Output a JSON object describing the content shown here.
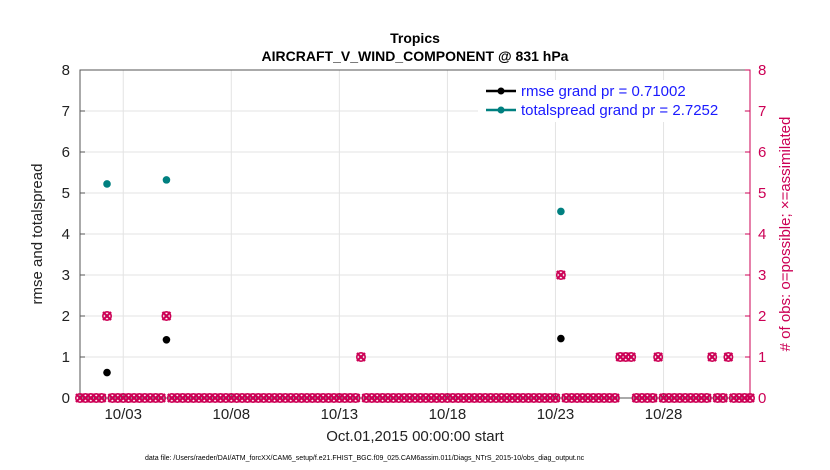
{
  "chart_data": {
    "type": "scatter",
    "title": "Tropics",
    "subtitle": "AIRCRAFT_V_WIND_COMPONENT @ 831 hPa",
    "xlabel": "Oct.01,2015 00:00:00 start",
    "ylabel_left": "rmse and totalspread",
    "ylabel_right": "# of obs: o=possible; ×=assimilated",
    "xlim": [
      1.0,
      32.0
    ],
    "ylim_left": [
      0,
      8
    ],
    "ylim_right": [
      0,
      8
    ],
    "grid": true,
    "x_ticks": [
      {
        "value": 3,
        "label": "10/03"
      },
      {
        "value": 8,
        "label": "10/08"
      },
      {
        "value": 13,
        "label": "10/13"
      },
      {
        "value": 18,
        "label": "10/18"
      },
      {
        "value": 23,
        "label": "10/23"
      },
      {
        "value": 28,
        "label": "10/28"
      }
    ],
    "y_ticks_left": [
      "0",
      "1",
      "2",
      "3",
      "4",
      "5",
      "6",
      "7",
      "8"
    ],
    "y_ticks_right": [
      "0",
      "1",
      "2",
      "3",
      "4",
      "5",
      "6",
      "7",
      "8"
    ],
    "legend_position": "top-right",
    "series": [
      {
        "name": "rmse grand pr = 0.71002",
        "color": "#000000",
        "axis": "left",
        "x": [
          2.25,
          5.0,
          23.25
        ],
        "values": [
          0.62,
          1.42,
          1.45
        ]
      },
      {
        "name": "totalspread grand pr = 2.7252",
        "color": "#008080",
        "axis": "left",
        "x": [
          2.25,
          5.0,
          23.25
        ],
        "values": [
          5.22,
          5.32,
          4.55
        ]
      },
      {
        "name": "obs possible",
        "color": "#cc0055",
        "axis": "right",
        "x": [
          1.0,
          1.25,
          1.5,
          1.75,
          2.0,
          2.25,
          2.5,
          2.75,
          3.0,
          3.25,
          3.5,
          3.75,
          4.0,
          4.25,
          4.5,
          4.75,
          5.0,
          5.25,
          5.5,
          5.75,
          6.0,
          6.25,
          6.5,
          6.75,
          7.0,
          7.25,
          7.5,
          7.75,
          8.0,
          8.25,
          8.5,
          8.75,
          9.0,
          9.25,
          9.5,
          9.75,
          10.0,
          10.25,
          10.5,
          10.75,
          11.0,
          11.25,
          11.5,
          11.75,
          12.0,
          12.25,
          12.5,
          12.75,
          13.0,
          13.25,
          13.5,
          13.75,
          14.0,
          14.25,
          14.5,
          14.75,
          15.0,
          15.25,
          15.5,
          15.75,
          16.0,
          16.25,
          16.5,
          16.75,
          17.0,
          17.25,
          17.5,
          17.75,
          18.0,
          18.25,
          18.5,
          18.75,
          19.0,
          19.25,
          19.5,
          19.75,
          20.0,
          20.25,
          20.5,
          20.75,
          21.0,
          21.25,
          21.5,
          21.75,
          22.0,
          22.25,
          22.5,
          22.75,
          23.0,
          23.25,
          23.5,
          23.75,
          24.0,
          24.25,
          24.5,
          24.75,
          25.0,
          25.25,
          25.5,
          25.75,
          26.0,
          26.25,
          26.5,
          26.75,
          27.0,
          27.25,
          27.5,
          27.75,
          28.0,
          28.25,
          28.5,
          28.75,
          29.0,
          29.25,
          29.5,
          29.75,
          30.0,
          30.25,
          30.5,
          30.75,
          31.0,
          31.25,
          31.5,
          31.75,
          32.0
        ],
        "values": [
          0,
          0,
          0,
          0,
          0,
          2,
          0,
          0,
          0,
          0,
          0,
          0,
          0,
          0,
          0,
          0,
          2,
          0,
          0,
          0,
          0,
          0,
          0,
          0,
          0,
          0,
          0,
          0,
          0,
          0,
          0,
          0,
          0,
          0,
          0,
          0,
          0,
          0,
          0,
          0,
          0,
          0,
          0,
          0,
          0,
          0,
          0,
          0,
          0,
          0,
          0,
          0,
          1,
          0,
          0,
          0,
          0,
          0,
          0,
          0,
          0,
          0,
          0,
          0,
          0,
          0,
          0,
          0,
          0,
          0,
          0,
          0,
          0,
          0,
          0,
          0,
          0,
          0,
          0,
          0,
          0,
          0,
          0,
          0,
          0,
          0,
          0,
          0,
          0,
          3,
          0,
          0,
          0,
          0,
          0,
          0,
          0,
          0,
          0,
          0,
          1,
          1,
          1,
          0,
          0,
          0,
          0,
          1,
          0,
          0,
          0,
          0,
          0,
          0,
          0,
          0,
          0,
          1,
          0,
          0,
          1,
          0,
          0,
          0,
          0
        ]
      },
      {
        "name": "obs assimilated",
        "color": "#cc0055",
        "axis": "right",
        "x": [
          1.0,
          1.25,
          1.5,
          1.75,
          2.0,
          2.25,
          2.5,
          2.75,
          3.0,
          3.25,
          3.5,
          3.75,
          4.0,
          4.25,
          4.5,
          4.75,
          5.0,
          5.25,
          5.5,
          5.75,
          6.0,
          6.25,
          6.5,
          6.75,
          7.0,
          7.25,
          7.5,
          7.75,
          8.0,
          8.25,
          8.5,
          8.75,
          9.0,
          9.25,
          9.5,
          9.75,
          10.0,
          10.25,
          10.5,
          10.75,
          11.0,
          11.25,
          11.5,
          11.75,
          12.0,
          12.25,
          12.5,
          12.75,
          13.0,
          13.25,
          13.5,
          13.75,
          14.0,
          14.25,
          14.5,
          14.75,
          15.0,
          15.25,
          15.5,
          15.75,
          16.0,
          16.25,
          16.5,
          16.75,
          17.0,
          17.25,
          17.5,
          17.75,
          18.0,
          18.25,
          18.5,
          18.75,
          19.0,
          19.25,
          19.5,
          19.75,
          20.0,
          20.25,
          20.5,
          20.75,
          21.0,
          21.25,
          21.5,
          21.75,
          22.0,
          22.25,
          22.5,
          22.75,
          23.0,
          23.25,
          23.5,
          23.75,
          24.0,
          24.25,
          24.5,
          24.75,
          25.0,
          25.25,
          25.5,
          25.75,
          26.0,
          26.25,
          26.5,
          26.75,
          27.0,
          27.25,
          27.5,
          27.75,
          28.0,
          28.25,
          28.5,
          28.75,
          29.0,
          29.25,
          29.5,
          29.75,
          30.0,
          30.25,
          30.5,
          30.75,
          31.0,
          31.25,
          31.5,
          31.75,
          32.0
        ],
        "values": [
          0,
          0,
          0,
          0,
          0,
          2,
          0,
          0,
          0,
          0,
          0,
          0,
          0,
          0,
          0,
          0,
          2,
          0,
          0,
          0,
          0,
          0,
          0,
          0,
          0,
          0,
          0,
          0,
          0,
          0,
          0,
          0,
          0,
          0,
          0,
          0,
          0,
          0,
          0,
          0,
          0,
          0,
          0,
          0,
          0,
          0,
          0,
          0,
          0,
          0,
          0,
          0,
          1,
          0,
          0,
          0,
          0,
          0,
          0,
          0,
          0,
          0,
          0,
          0,
          0,
          0,
          0,
          0,
          0,
          0,
          0,
          0,
          0,
          0,
          0,
          0,
          0,
          0,
          0,
          0,
          0,
          0,
          0,
          0,
          0,
          0,
          0,
          0,
          0,
          3,
          0,
          0,
          0,
          0,
          0,
          0,
          0,
          0,
          0,
          0,
          1,
          1,
          1,
          0,
          0,
          0,
          0,
          1,
          0,
          0,
          0,
          0,
          0,
          0,
          0,
          0,
          0,
          1,
          0,
          0,
          1,
          0,
          0,
          0,
          0
        ]
      }
    ],
    "footnote": "data file: /Users/raeder/DAI/ATM_forcXX/CAM6_setup/f.e21.FHIST_BGC.f09_025.CAM6assim.011/Diags_NTrS_2015-10/obs_diag_output.nc"
  }
}
